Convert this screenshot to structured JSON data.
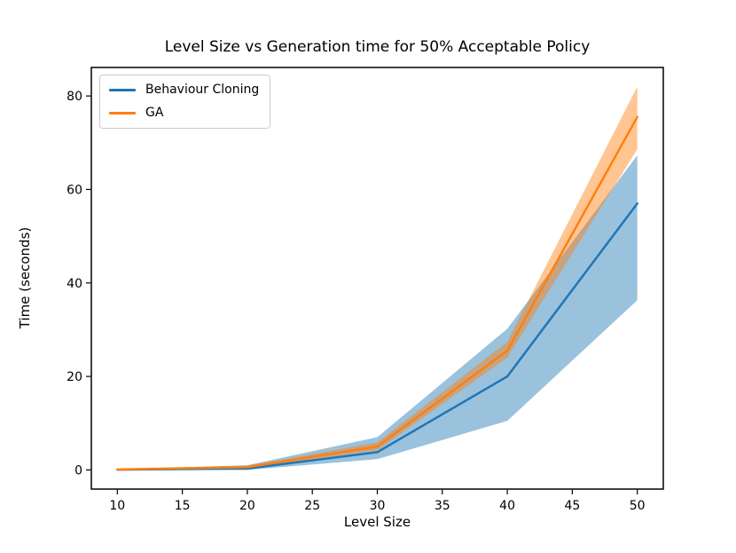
{
  "figure": {
    "background": "#ffffff"
  },
  "chart_data": {
    "type": "line",
    "title": "Level Size vs Generation time for 50% Acceptable Policy",
    "xlabel": "Level Size",
    "ylabel": "Time (seconds)",
    "x": [
      10,
      20,
      30,
      40,
      50
    ],
    "series": [
      {
        "name": "Behaviour Cloning",
        "color": "#1f77b4",
        "mean": [
          0.05,
          0.3,
          3.8,
          20.0,
          57.0
        ],
        "band_low": [
          0.0,
          0.0,
          2.3,
          10.5,
          36.3
        ],
        "band_high": [
          0.1,
          1.0,
          7.0,
          30.2,
          67.3
        ]
      },
      {
        "name": "GA",
        "color": "#ff7f0e",
        "mean": [
          0.1,
          0.6,
          5.0,
          25.5,
          75.5
        ],
        "band_low": [
          0.05,
          0.4,
          4.2,
          24.0,
          68.6
        ],
        "band_high": [
          0.2,
          0.9,
          5.9,
          27.4,
          82.0
        ]
      }
    ],
    "band_opacity": 0.45,
    "line_width": 2.5,
    "xlim": [
      8,
      52
    ],
    "ylim": [
      -4.1,
      86.1
    ],
    "xticks": [
      10,
      15,
      20,
      25,
      30,
      35,
      40,
      45,
      50
    ],
    "yticks": [
      0,
      20,
      40,
      60,
      80
    ],
    "legend_position": "upper left",
    "grid": false,
    "axis_color": "#000000",
    "tick_font_size": 14
  }
}
